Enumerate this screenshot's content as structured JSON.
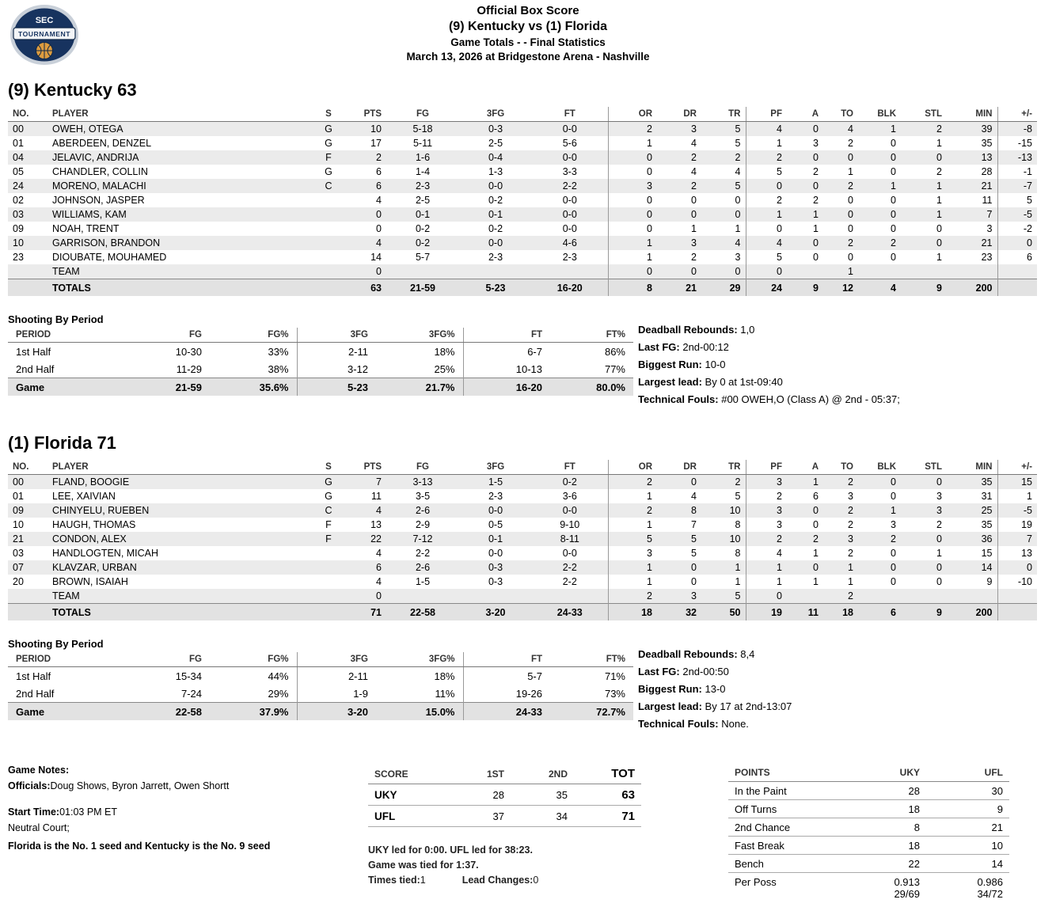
{
  "logo": {
    "top": "SEC",
    "banner": "TOURNAMENT"
  },
  "header": {
    "title": "Official Box Score",
    "matchup": "(9) Kentucky vs (1) Florida",
    "totals_line": "Game Totals - - Final Statistics",
    "date_line": "March 13, 2026 at Bridgestone Arena - Nashville"
  },
  "labels": {
    "shooting_by_period": "Shooting By Period"
  },
  "player_columns": [
    "NO.",
    "PLAYER",
    "S",
    "PTS",
    "FG",
    "3FG",
    "FT",
    "OR",
    "DR",
    "TR",
    "PF",
    "A",
    "TO",
    "BLK",
    "STL",
    "MIN",
    "+/-"
  ],
  "shooting_columns": [
    "PERIOD",
    "FG",
    "FG%",
    "3FG",
    "3FG%",
    "FT",
    "FT%"
  ],
  "kentucky": {
    "title": "(9) Kentucky 63",
    "players": [
      [
        "00",
        "OWEH, OTEGA",
        "G",
        "10",
        "5-18",
        "0-3",
        "0-0",
        "2",
        "3",
        "5",
        "4",
        "0",
        "4",
        "1",
        "2",
        "39",
        "-8"
      ],
      [
        "01",
        "ABERDEEN, DENZEL",
        "G",
        "17",
        "5-11",
        "2-5",
        "5-6",
        "1",
        "4",
        "5",
        "1",
        "3",
        "2",
        "0",
        "1",
        "35",
        "-15"
      ],
      [
        "04",
        "JELAVIC, ANDRIJA",
        "F",
        "2",
        "1-6",
        "0-4",
        "0-0",
        "0",
        "2",
        "2",
        "2",
        "0",
        "0",
        "0",
        "0",
        "13",
        "-13"
      ],
      [
        "05",
        "CHANDLER, COLLIN",
        "G",
        "6",
        "1-4",
        "1-3",
        "3-3",
        "0",
        "4",
        "4",
        "5",
        "2",
        "1",
        "0",
        "2",
        "28",
        "-1"
      ],
      [
        "24",
        "MORENO, MALACHI",
        "C",
        "6",
        "2-3",
        "0-0",
        "2-2",
        "3",
        "2",
        "5",
        "0",
        "0",
        "2",
        "1",
        "1",
        "21",
        "-7"
      ],
      [
        "02",
        "JOHNSON, JASPER",
        "",
        "4",
        "2-5",
        "0-2",
        "0-0",
        "0",
        "0",
        "0",
        "2",
        "2",
        "0",
        "0",
        "1",
        "11",
        "5"
      ],
      [
        "03",
        "WILLIAMS, KAM",
        "",
        "0",
        "0-1",
        "0-1",
        "0-0",
        "0",
        "0",
        "0",
        "1",
        "1",
        "0",
        "0",
        "1",
        "7",
        "-5"
      ],
      [
        "09",
        "NOAH, TRENT",
        "",
        "0",
        "0-2",
        "0-2",
        "0-0",
        "0",
        "1",
        "1",
        "0",
        "1",
        "0",
        "0",
        "0",
        "3",
        "-2"
      ],
      [
        "10",
        "GARRISON, BRANDON",
        "",
        "4",
        "0-2",
        "0-0",
        "4-6",
        "1",
        "3",
        "4",
        "4",
        "0",
        "2",
        "2",
        "0",
        "21",
        "0"
      ],
      [
        "23",
        "DIOUBATE, MOUHAMED",
        "",
        "14",
        "5-7",
        "2-3",
        "2-3",
        "1",
        "2",
        "3",
        "5",
        "0",
        "0",
        "0",
        "1",
        "23",
        "6"
      ],
      [
        "",
        "TEAM",
        "",
        "0",
        "",
        "",
        "",
        "0",
        "0",
        "0",
        "0",
        "",
        "1",
        "",
        "",
        "",
        ""
      ]
    ],
    "totals": [
      "",
      "TOTALS",
      "",
      "63",
      "21-59",
      "5-23",
      "16-20",
      "8",
      "21",
      "29",
      "24",
      "9",
      "12",
      "4",
      "9",
      "200",
      ""
    ],
    "shooting_rows": [
      [
        "1st Half",
        "10-30",
        "33%",
        "2-11",
        "18%",
        "6-7",
        "86%"
      ],
      [
        "2nd Half",
        "11-29",
        "38%",
        "3-12",
        "25%",
        "10-13",
        "77%"
      ]
    ],
    "shooting_game": [
      "Game",
      "21-59",
      "35.6%",
      "5-23",
      "21.7%",
      "16-20",
      "80.0%"
    ],
    "notes": [
      {
        "label": "Deadball Rebounds:",
        "value": "1,0"
      },
      {
        "label": "Last FG:",
        "value": "2nd-00:12"
      },
      {
        "label": "Biggest Run:",
        "value": "10-0"
      },
      {
        "label": "Largest lead:",
        "value": "By 0 at 1st-09:40"
      },
      {
        "label": "Technical Fouls:",
        "value": "#00 OWEH,O (Class A) @ 2nd - 05:37;"
      }
    ]
  },
  "florida": {
    "title": "(1) Florida 71",
    "players": [
      [
        "00",
        "FLAND, BOOGIE",
        "G",
        "7",
        "3-13",
        "1-5",
        "0-2",
        "2",
        "0",
        "2",
        "3",
        "1",
        "2",
        "0",
        "0",
        "35",
        "15"
      ],
      [
        "01",
        "LEE, XAIVIAN",
        "G",
        "11",
        "3-5",
        "2-3",
        "3-6",
        "1",
        "4",
        "5",
        "2",
        "6",
        "3",
        "0",
        "3",
        "31",
        "1"
      ],
      [
        "09",
        "CHINYELU, RUEBEN",
        "C",
        "4",
        "2-6",
        "0-0",
        "0-0",
        "2",
        "8",
        "10",
        "3",
        "0",
        "2",
        "1",
        "3",
        "25",
        "-5"
      ],
      [
        "10",
        "HAUGH, THOMAS",
        "F",
        "13",
        "2-9",
        "0-5",
        "9-10",
        "1",
        "7",
        "8",
        "3",
        "0",
        "2",
        "3",
        "2",
        "35",
        "19"
      ],
      [
        "21",
        "CONDON, ALEX",
        "F",
        "22",
        "7-12",
        "0-1",
        "8-11",
        "5",
        "5",
        "10",
        "2",
        "2",
        "3",
        "2",
        "0",
        "36",
        "7"
      ],
      [
        "03",
        "HANDLOGTEN, MICAH",
        "",
        "4",
        "2-2",
        "0-0",
        "0-0",
        "3",
        "5",
        "8",
        "4",
        "1",
        "2",
        "0",
        "1",
        "15",
        "13"
      ],
      [
        "07",
        "KLAVZAR, URBAN",
        "",
        "6",
        "2-6",
        "0-3",
        "2-2",
        "1",
        "0",
        "1",
        "1",
        "0",
        "1",
        "0",
        "0",
        "14",
        "0"
      ],
      [
        "20",
        "BROWN, ISAIAH",
        "",
        "4",
        "1-5",
        "0-3",
        "2-2",
        "1",
        "0",
        "1",
        "1",
        "1",
        "1",
        "0",
        "0",
        "9",
        "-10"
      ],
      [
        "",
        "TEAM",
        "",
        "0",
        "",
        "",
        "",
        "2",
        "3",
        "5",
        "0",
        "",
        "2",
        "",
        "",
        "",
        ""
      ]
    ],
    "totals": [
      "",
      "TOTALS",
      "",
      "71",
      "22-58",
      "3-20",
      "24-33",
      "18",
      "32",
      "50",
      "19",
      "11",
      "18",
      "6",
      "9",
      "200",
      ""
    ],
    "shooting_rows": [
      [
        "1st Half",
        "15-34",
        "44%",
        "2-11",
        "18%",
        "5-7",
        "71%"
      ],
      [
        "2nd Half",
        "7-24",
        "29%",
        "1-9",
        "11%",
        "19-26",
        "73%"
      ]
    ],
    "shooting_game": [
      "Game",
      "22-58",
      "37.9%",
      "3-20",
      "15.0%",
      "24-33",
      "72.7%"
    ],
    "notes": [
      {
        "label": "Deadball Rebounds:",
        "value": "8,4"
      },
      {
        "label": "Last FG:",
        "value": "2nd-00:50"
      },
      {
        "label": "Biggest Run:",
        "value": "13-0"
      },
      {
        "label": "Largest lead:",
        "value": "By 17 at 2nd-13:07"
      },
      {
        "label": "Technical Fouls:",
        "value": "None."
      }
    ]
  },
  "game_notes": {
    "title": "Game Notes:",
    "officials_label": "Officials:",
    "officials": "Doug Shows, Byron Jarrett, Owen Shortt",
    "start_label": "Start Time:",
    "start_value": "01:03 PM ET",
    "neutral": "Neutral Court;",
    "seed_note": "Florida is the No. 1 seed and Kentucky is the No. 9 seed"
  },
  "linescore": {
    "columns": [
      "SCORE",
      "1ST",
      "2ND",
      "TOT"
    ],
    "rows": [
      {
        "team": "UKY",
        "p1": "28",
        "p2": "35",
        "tot": "63"
      },
      {
        "team": "UFL",
        "p1": "37",
        "p2": "34",
        "tot": "71"
      }
    ],
    "led_line": "UKY led for 0:00. UFL led for 38:23.",
    "tied_line": "Game was tied for 1:37.",
    "times_tied_label": "Times tied:",
    "times_tied": "1",
    "lead_changes_label": "Lead Changes:",
    "lead_changes": "0"
  },
  "points_table": {
    "columns": [
      "POINTS",
      "UKY",
      "UFL"
    ],
    "rows": [
      [
        "In the Paint",
        "28",
        "30"
      ],
      [
        "Off Turns",
        "18",
        "9"
      ],
      [
        "2nd Chance",
        "8",
        "21"
      ],
      [
        "Fast Break",
        "18",
        "10"
      ],
      [
        "Bench",
        "22",
        "14"
      ],
      [
        "Per Poss",
        "0.913\n29/69",
        "0.986\n34/72"
      ]
    ]
  }
}
